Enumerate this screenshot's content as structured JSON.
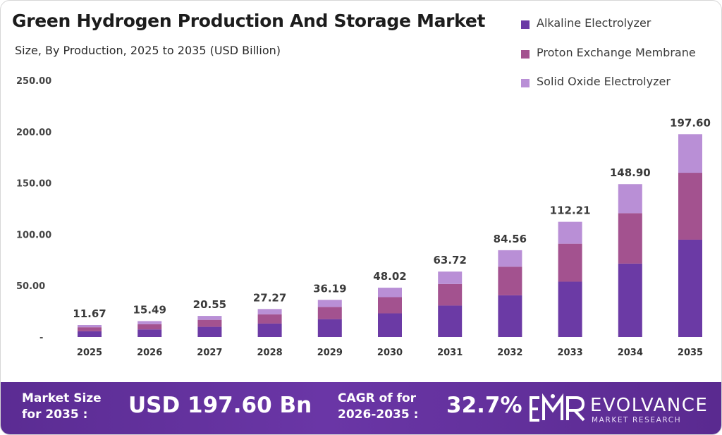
{
  "chart_data": {
    "type": "bar",
    "stacked": true,
    "title": "Green Hydrogen Production And Storage Market",
    "subtitle": "Size, By Production, 2025 to 2035 (USD Billion)",
    "categories": [
      "2025",
      "2026",
      "2027",
      "2028",
      "2029",
      "2030",
      "2031",
      "2032",
      "2033",
      "2034",
      "2035"
    ],
    "totals": [
      11.67,
      15.49,
      20.55,
      27.27,
      36.19,
      48.02,
      63.72,
      84.56,
      112.21,
      148.9,
      197.6
    ],
    "total_labels": [
      "11.67",
      "15.49",
      "20.55",
      "27.27",
      "36.19",
      "48.02",
      "63.72",
      "84.56",
      "112.21",
      "148.90",
      "197.60"
    ],
    "series": [
      {
        "name": "Alkaline Electrolyzer",
        "color": "#6b3aa5",
        "values": [
          5.6,
          7.4,
          9.9,
          13.1,
          17.4,
          23.0,
          30.6,
          40.6,
          53.9,
          71.5,
          94.8
        ]
      },
      {
        "name": "Proton Exchange Membrane",
        "color": "#a3528f",
        "values": [
          3.9,
          5.1,
          6.8,
          9.0,
          11.9,
          15.8,
          21.0,
          27.9,
          37.0,
          49.1,
          65.2
        ]
      },
      {
        "name": "Solid Oxide Electrolyzer",
        "color": "#b98fd6",
        "values": [
          2.17,
          2.99,
          3.85,
          5.17,
          6.89,
          9.22,
          12.12,
          16.06,
          21.31,
          28.3,
          37.6
        ]
      }
    ],
    "yticks": [
      0,
      50,
      100,
      150,
      200,
      250
    ],
    "ytick_labels": [
      "-",
      "50.00",
      "100.00",
      "150.00",
      "200.00",
      "250.00"
    ],
    "ylim": [
      0,
      250
    ],
    "grid": false,
    "legend_position": "top-right"
  },
  "footer": {
    "size_label_1": "Market Size",
    "size_label_2": "for 2035 :",
    "size_value": "USD 197.60 Bn",
    "cagr_label_1": "CAGR of for",
    "cagr_label_2": "2026-2035 :",
    "cagr_value": "32.7%",
    "brand_name": "EVOLVANCE",
    "brand_sub": "MARKET RESEARCH",
    "logo_icon": "emr-logo-icon",
    "background_color": "#5b2c93"
  }
}
